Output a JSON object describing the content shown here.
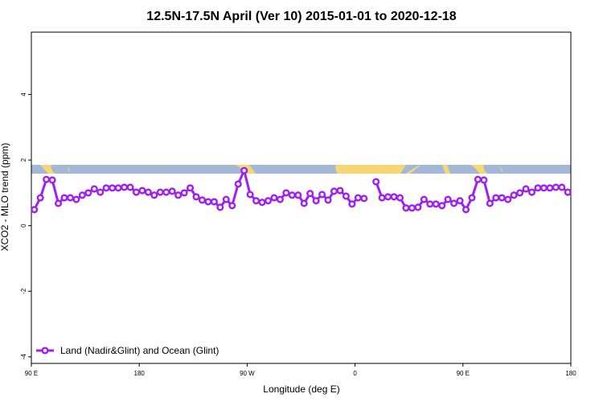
{
  "chart_data": {
    "type": "line",
    "title": "12.5N-17.5N April (Ver 10)   2015-01-01 to 2020-12-18",
    "x_label": "Longitude (deg E)",
    "y_label": "XCO2 - MLO trend (ppm)",
    "xlim": [
      90,
      540
    ],
    "ylim": [
      -4.2,
      5.9
    ],
    "xticks": [
      {
        "value": 90,
        "label": "90 E"
      },
      180,
      {
        "value": 270,
        "label": "90 W"
      },
      {
        "value": 360,
        "label": "0"
      },
      {
        "value": 450,
        "label": "90 E"
      },
      {
        "value": 540,
        "label": "180"
      }
    ],
    "yticks": [
      -4,
      -2,
      0,
      2,
      4
    ],
    "legend": "bottom-left",
    "x": [
      92.5,
      97.5,
      102.5,
      107.5,
      112.5,
      117.5,
      122.5,
      127.5,
      132.5,
      137.5,
      142.5,
      147.5,
      152.5,
      157.5,
      162.5,
      167.5,
      172.5,
      177.5,
      182.5,
      187.5,
      192.5,
      197.5,
      202.5,
      207.5,
      212.5,
      217.5,
      222.5,
      227.5,
      232.5,
      237.5,
      242.5,
      247.5,
      252.5,
      257.5,
      262.5,
      267.5,
      272.5,
      277.5,
      282.5,
      287.5,
      292.5,
      297.5,
      302.5,
      307.5,
      312.5,
      317.5,
      322.5,
      327.5,
      332.5,
      337.5,
      342.5,
      347.5,
      352.5,
      357.5,
      362.5,
      367.5,
      372.5,
      377.5,
      382.5,
      387.5,
      392.5,
      397.5,
      402.5,
      407.5,
      412.5,
      417.5,
      422.5,
      427.5,
      432.5,
      437.5,
      442.5,
      447.5,
      452.5,
      457.5,
      462.5,
      467.5,
      472.5,
      477.5,
      482.5,
      487.5,
      492.5,
      497.5,
      502.5,
      507.5,
      512.5,
      517.5,
      522.5,
      527.5,
      532.5,
      537.5
    ],
    "series": [
      {
        "name": "Land (Nadir&Glint) and Ocean (Glint)",
        "color": "#a020f0",
        "values": [
          0.49,
          0.85,
          1.41,
          1.39,
          0.68,
          0.85,
          0.85,
          0.8,
          0.93,
          1.0,
          1.12,
          1.02,
          1.15,
          1.15,
          1.15,
          1.17,
          1.17,
          1.02,
          1.07,
          1.02,
          0.93,
          1.02,
          1.02,
          1.05,
          0.93,
          1.0,
          1.15,
          0.88,
          0.78,
          0.73,
          0.73,
          0.56,
          0.8,
          0.61,
          1.27,
          1.68,
          0.95,
          0.76,
          0.71,
          0.76,
          0.85,
          0.8,
          1.0,
          0.93,
          0.93,
          0.68,
          0.98,
          0.76,
          0.95,
          0.78,
          1.05,
          1.07,
          0.9,
          0.66,
          0.85,
          0.83,
          null,
          1.34,
          0.85,
          0.88,
          0.88,
          0.85,
          0.54,
          0.54,
          0.56,
          0.8,
          0.66,
          0.66,
          0.61,
          0.8,
          0.68,
          0.76,
          0.49,
          0.85,
          1.41,
          1.39,
          0.68,
          0.85,
          0.85,
          0.8,
          0.93,
          1.0,
          1.12,
          1.02,
          1.15,
          1.15,
          1.15,
          1.17,
          1.17,
          1.02
        ]
      }
    ]
  }
}
